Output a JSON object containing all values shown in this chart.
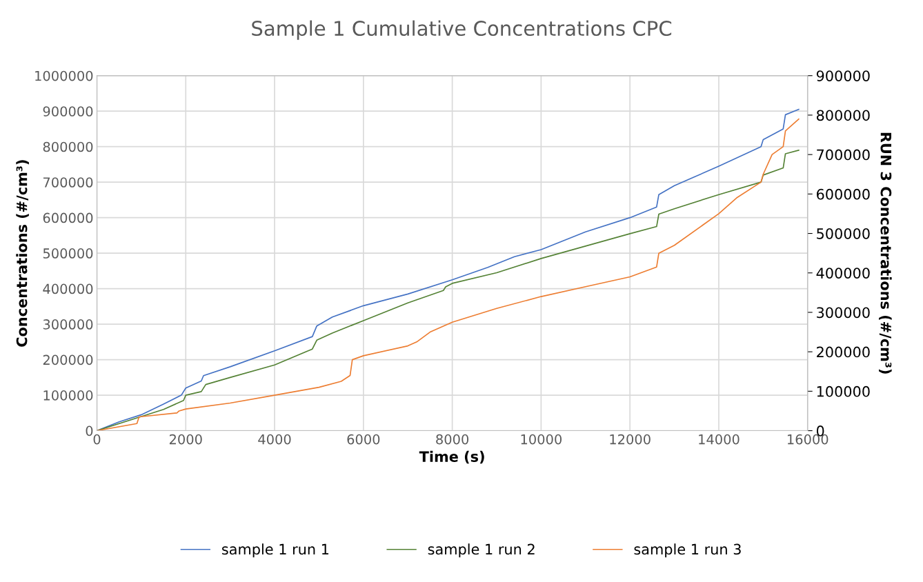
{
  "chart_data": {
    "type": "line",
    "title": "Sample 1 Cumulative Concentrations CPC",
    "xlabel": "Time (s)",
    "ylabel": "Concentrations (#/cm³)",
    "y2label": "RUN 3 Concentrations (#/cm³)",
    "xlim": [
      0,
      16000
    ],
    "xticks": [
      0,
      2000,
      4000,
      6000,
      8000,
      10000,
      12000,
      14000,
      16000
    ],
    "ylim": [
      0,
      1000000
    ],
    "yticks": [
      0,
      100000,
      200000,
      300000,
      400000,
      500000,
      600000,
      700000,
      800000,
      900000,
      1000000
    ],
    "y2lim": [
      0,
      900000
    ],
    "y2ticks": [
      0,
      100000,
      200000,
      300000,
      400000,
      500000,
      600000,
      700000,
      800000,
      900000
    ],
    "grid": true,
    "legend": "bottom",
    "marker": "none",
    "line_style": "solid",
    "series": [
      {
        "name": "sample 1 run 1",
        "color": "#4472c4",
        "x": [
          0,
          500,
          1000,
          1500,
          1900,
          2000,
          2350,
          2400,
          3000,
          4000,
          4850,
          4950,
          5300,
          6000,
          7000,
          8000,
          8800,
          9400,
          10000,
          11000,
          12000,
          12600,
          12650,
          13000,
          14000,
          14950,
          15000,
          15450,
          15500,
          15800
        ],
        "values": [
          0,
          25000,
          45000,
          75000,
          100000,
          120000,
          140000,
          155000,
          180000,
          225000,
          265000,
          295000,
          320000,
          352000,
          385000,
          425000,
          460000,
          490000,
          510000,
          560000,
          600000,
          630000,
          665000,
          690000,
          745000,
          800000,
          820000,
          850000,
          890000,
          905000
        ]
      },
      {
        "name": "sample 1 run 2",
        "color": "#548235",
        "x": [
          0,
          1000,
          1500,
          1950,
          2000,
          2350,
          2450,
          3000,
          4000,
          4850,
          4950,
          5300,
          6000,
          7000,
          7800,
          7850,
          8000,
          9000,
          10000,
          11000,
          12000,
          12600,
          12650,
          13000,
          14000,
          14950,
          15000,
          15450,
          15500,
          15800
        ],
        "values": [
          0,
          40000,
          60000,
          85000,
          100000,
          110000,
          130000,
          150000,
          185000,
          230000,
          255000,
          275000,
          310000,
          360000,
          395000,
          405000,
          415000,
          445000,
          485000,
          520000,
          555000,
          575000,
          610000,
          625000,
          665000,
          700000,
          720000,
          740000,
          780000,
          790000
        ]
      },
      {
        "name": "sample 1 run 3",
        "color": "#ed7d31",
        "axis": "y2",
        "x": [
          0,
          900,
          950,
          1800,
          1850,
          2000,
          3000,
          4000,
          5000,
          5500,
          5700,
          5750,
          6000,
          7000,
          7200,
          7500,
          8000,
          9000,
          10000,
          11000,
          12000,
          12600,
          12650,
          13000,
          14000,
          14400,
          14950,
          15000,
          15200,
          15450,
          15500,
          15800
        ],
        "values": [
          0,
          18000,
          35000,
          45000,
          50000,
          55000,
          70000,
          90000,
          110000,
          125000,
          140000,
          180000,
          190000,
          215000,
          225000,
          250000,
          275000,
          310000,
          340000,
          365000,
          390000,
          415000,
          450000,
          470000,
          550000,
          590000,
          630000,
          650000,
          700000,
          720000,
          760000,
          790000
        ]
      }
    ]
  }
}
